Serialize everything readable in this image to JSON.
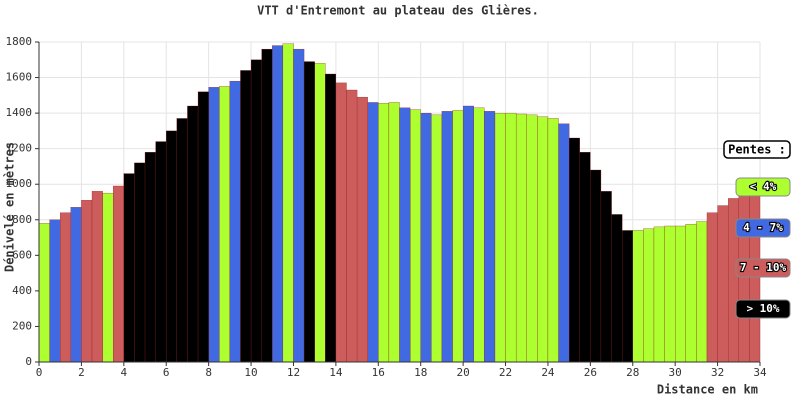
{
  "chart_data": {
    "type": "bar",
    "title": "VTT d'Entremont au plateau des Glières.",
    "x_label": "Distance en km",
    "y_label": "Dénivelé en mètres",
    "legend_title": "Pentes :",
    "xlim": [
      0,
      34
    ],
    "xticks": [
      0,
      2,
      4,
      6,
      8,
      10,
      12,
      14,
      16,
      18,
      20,
      22,
      24,
      26,
      28,
      30,
      32,
      34
    ],
    "ylim": [
      0,
      1800
    ],
    "yticks": [
      0,
      200,
      400,
      600,
      800,
      1000,
      1200,
      1400,
      1600,
      1800
    ],
    "grid": true,
    "legend": "right",
    "x": [
      0,
      0.5,
      1,
      1.5,
      2,
      2.5,
      3,
      3.5,
      4,
      4.5,
      5,
      5.5,
      6,
      6.5,
      7,
      7.5,
      8,
      8.5,
      9,
      9.5,
      10,
      10.5,
      11,
      11.5,
      12,
      12.5,
      13,
      13.5,
      14,
      14.5,
      15,
      15.5,
      16,
      16.5,
      17,
      17.5,
      18,
      18.5,
      19,
      19.5,
      20,
      20.5,
      21,
      21.5,
      22,
      22.5,
      23,
      23.5,
      24,
      24.5,
      25,
      25.5,
      26,
      26.5,
      27,
      27.5,
      28,
      28.5,
      29,
      29.5,
      30,
      30.5,
      31,
      31.5,
      32,
      32.5,
      33,
      33.5
    ],
    "series": [
      {
        "name": "< 4%",
        "color": "#adff2f",
        "values": [
          780,
          null,
          null,
          null,
          null,
          null,
          950,
          null,
          null,
          null,
          null,
          null,
          null,
          null,
          null,
          null,
          null,
          1550,
          null,
          null,
          null,
          null,
          null,
          1790,
          null,
          null,
          1680,
          null,
          null,
          null,
          null,
          null,
          1455,
          1460,
          null,
          1420,
          null,
          1390,
          null,
          1415,
          null,
          1430,
          null,
          1400,
          1400,
          1395,
          1390,
          1380,
          1370,
          null,
          null,
          null,
          null,
          null,
          null,
          null,
          740,
          750,
          760,
          765,
          765,
          775,
          790,
          null,
          null,
          null,
          null,
          null
        ]
      },
      {
        "name": "4 - 7%",
        "color": "#4169e1",
        "values": [
          null,
          800,
          null,
          870,
          null,
          null,
          null,
          null,
          null,
          null,
          null,
          null,
          null,
          null,
          null,
          null,
          1545,
          null,
          1580,
          null,
          null,
          null,
          1780,
          null,
          1760,
          null,
          null,
          null,
          null,
          null,
          null,
          1460,
          null,
          null,
          1430,
          null,
          1400,
          null,
          1410,
          null,
          1440,
          null,
          1410,
          null,
          null,
          null,
          null,
          null,
          null,
          1340,
          null,
          null,
          null,
          null,
          null,
          null,
          null,
          null,
          null,
          null,
          null,
          null,
          null,
          null,
          null,
          null,
          null,
          null
        ]
      },
      {
        "name": "7 - 10%",
        "color": "#cd5c5c",
        "values": [
          null,
          null,
          840,
          null,
          910,
          960,
          null,
          990,
          null,
          null,
          null,
          null,
          null,
          null,
          null,
          null,
          null,
          null,
          null,
          null,
          null,
          null,
          null,
          null,
          null,
          null,
          null,
          null,
          1570,
          1530,
          1490,
          null,
          null,
          null,
          null,
          null,
          null,
          null,
          null,
          null,
          null,
          null,
          null,
          null,
          null,
          null,
          null,
          null,
          null,
          null,
          null,
          null,
          null,
          null,
          null,
          null,
          null,
          null,
          null,
          null,
          null,
          null,
          null,
          840,
          880,
          920,
          960,
          1010
        ]
      },
      {
        "name": "> 10%",
        "color": "#000000",
        "values": [
          null,
          null,
          null,
          null,
          null,
          null,
          null,
          null,
          1060,
          1120,
          1180,
          1240,
          1300,
          1370,
          1440,
          1520,
          null,
          null,
          null,
          1640,
          1700,
          1760,
          null,
          null,
          null,
          1690,
          null,
          1620,
          null,
          null,
          null,
          null,
          null,
          null,
          null,
          null,
          null,
          null,
          null,
          null,
          null,
          null,
          null,
          null,
          null,
          null,
          null,
          null,
          null,
          null,
          1260,
          1180,
          1080,
          960,
          830,
          740,
          null,
          null,
          null,
          null,
          null,
          null,
          null,
          null,
          null,
          null,
          null,
          null
        ]
      }
    ]
  }
}
